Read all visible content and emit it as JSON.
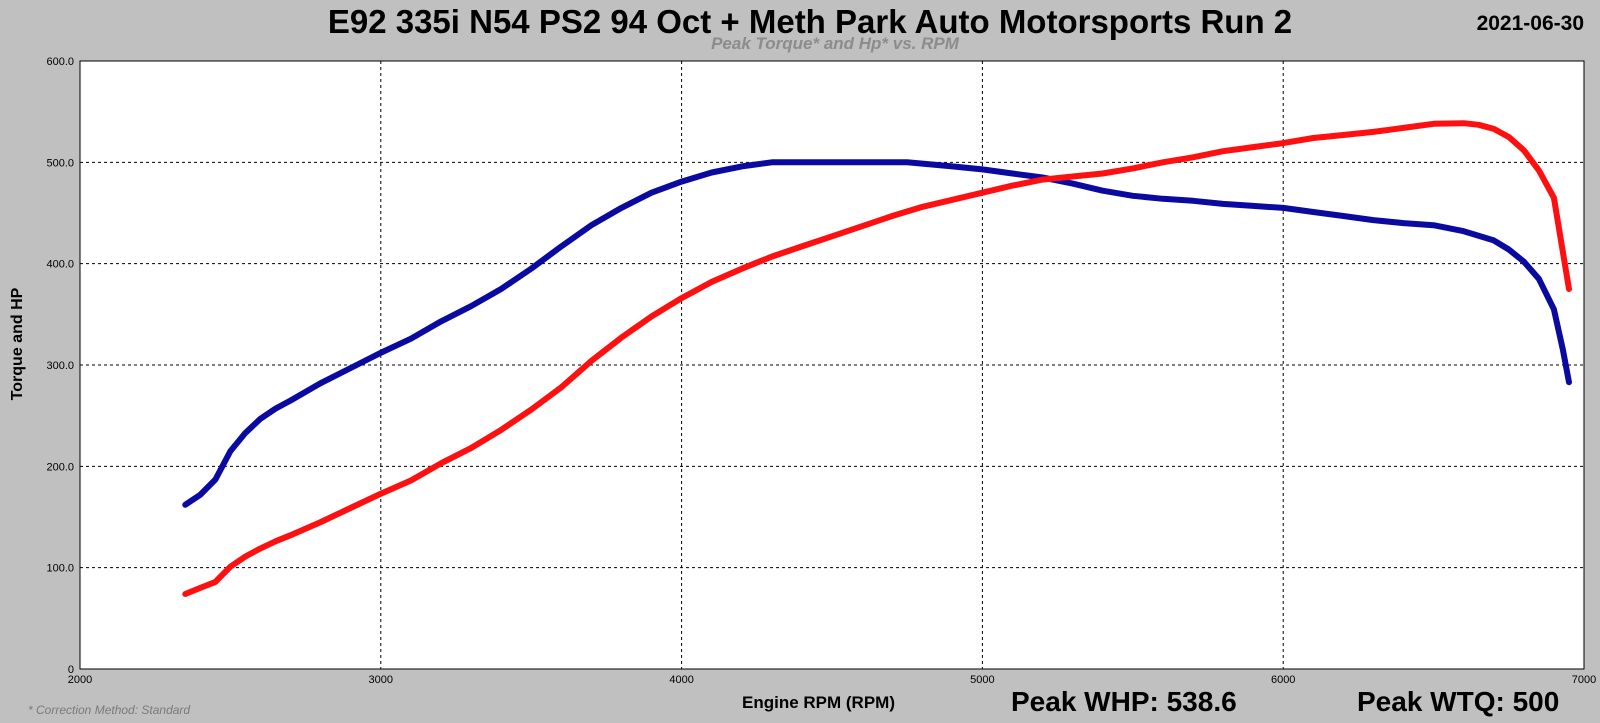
{
  "header": {
    "title": "E92 335i N54 PS2 94 Oct + Meth Park Auto Motorsports Run 2",
    "date": "2021-06-30",
    "subtitle": "Peak Torque* and Hp* vs. RPM"
  },
  "footer": {
    "correction_note": "* Correction Method: Standard",
    "peak_whp": "Peak WHP: 538.6",
    "peak_wtq": "Peak WTQ: 500"
  },
  "colors": {
    "background": "#c0c0c0",
    "plot_background": "#ffffff",
    "torque_series": "#0a0aa0",
    "hp_series": "#ff1010"
  },
  "chart_data": {
    "type": "line",
    "title": "E92 335i N54 PS2 94 Oct + Meth Park Auto Motorsports Run 2",
    "subtitle": "Peak Torque* and Hp* vs. RPM",
    "xlabel": "Engine RPM (RPM)",
    "ylabel": "Torque and HP",
    "xlim": [
      2000,
      7000
    ],
    "ylim": [
      0,
      600
    ],
    "x_ticks": [
      2000,
      3000,
      4000,
      5000,
      6000,
      7000
    ],
    "y_ticks": [
      "0",
      "100.0",
      "200.0",
      "300.0",
      "400.0",
      "500.0",
      "600.0"
    ],
    "y_tick_values": [
      0,
      100,
      200,
      300,
      400,
      500,
      600
    ],
    "grid": true,
    "series": [
      {
        "color": "#0a0aa0",
        "points": [
          [
            2350,
            162
          ],
          [
            2400,
            172
          ],
          [
            2450,
            187
          ],
          [
            2500,
            215
          ],
          [
            2550,
            233
          ],
          [
            2600,
            247
          ],
          [
            2650,
            257
          ],
          [
            2700,
            265
          ],
          [
            2800,
            282
          ],
          [
            2900,
            297
          ],
          [
            3000,
            312
          ],
          [
            3100,
            326
          ],
          [
            3200,
            343
          ],
          [
            3300,
            358
          ],
          [
            3400,
            375
          ],
          [
            3500,
            395
          ],
          [
            3600,
            417
          ],
          [
            3700,
            438
          ],
          [
            3800,
            455
          ],
          [
            3900,
            470
          ],
          [
            4000,
            481
          ],
          [
            4100,
            490
          ],
          [
            4200,
            496
          ],
          [
            4300,
            500
          ],
          [
            4400,
            500
          ],
          [
            4500,
            500
          ],
          [
            4600,
            500
          ],
          [
            4750,
            500
          ],
          [
            4900,
            496
          ],
          [
            5000,
            493
          ],
          [
            5100,
            489
          ],
          [
            5200,
            485
          ],
          [
            5300,
            479
          ],
          [
            5400,
            472
          ],
          [
            5500,
            467
          ],
          [
            5600,
            464
          ],
          [
            5700,
            462
          ],
          [
            5800,
            459
          ],
          [
            5900,
            457
          ],
          [
            6000,
            455
          ],
          [
            6100,
            451
          ],
          [
            6200,
            447
          ],
          [
            6300,
            443
          ],
          [
            6400,
            440
          ],
          [
            6500,
            438
          ],
          [
            6600,
            432
          ],
          [
            6700,
            423
          ],
          [
            6750,
            414
          ],
          [
            6800,
            402
          ],
          [
            6850,
            385
          ],
          [
            6900,
            355
          ],
          [
            6930,
            315
          ],
          [
            6950,
            283
          ]
        ]
      },
      {
        "color": "#ff1010",
        "points": [
          [
            2350,
            74
          ],
          [
            2400,
            80
          ],
          [
            2450,
            86
          ],
          [
            2500,
            101
          ],
          [
            2550,
            111
          ],
          [
            2600,
            119
          ],
          [
            2650,
            126
          ],
          [
            2700,
            132
          ],
          [
            2800,
            145
          ],
          [
            2900,
            159
          ],
          [
            3000,
            173
          ],
          [
            3100,
            186
          ],
          [
            3200,
            203
          ],
          [
            3300,
            218
          ],
          [
            3400,
            236
          ],
          [
            3500,
            256
          ],
          [
            3600,
            278
          ],
          [
            3700,
            304
          ],
          [
            3800,
            327
          ],
          [
            3900,
            348
          ],
          [
            4000,
            366
          ],
          [
            4100,
            382
          ],
          [
            4200,
            395
          ],
          [
            4300,
            407
          ],
          [
            4400,
            417
          ],
          [
            4500,
            427
          ],
          [
            4600,
            437
          ],
          [
            4700,
            447
          ],
          [
            4800,
            456
          ],
          [
            4900,
            463
          ],
          [
            5000,
            470
          ],
          [
            5100,
            477
          ],
          [
            5200,
            483
          ],
          [
            5300,
            486
          ],
          [
            5400,
            489
          ],
          [
            5500,
            494
          ],
          [
            5600,
            500
          ],
          [
            5700,
            505
          ],
          [
            5800,
            511
          ],
          [
            5900,
            515
          ],
          [
            6000,
            519
          ],
          [
            6100,
            524
          ],
          [
            6200,
            527
          ],
          [
            6300,
            530
          ],
          [
            6400,
            534
          ],
          [
            6500,
            538
          ],
          [
            6600,
            538.6
          ],
          [
            6650,
            537
          ],
          [
            6700,
            533
          ],
          [
            6750,
            525
          ],
          [
            6800,
            512
          ],
          [
            6850,
            492
          ],
          [
            6900,
            465
          ],
          [
            6950,
            375
          ]
        ]
      }
    ]
  }
}
